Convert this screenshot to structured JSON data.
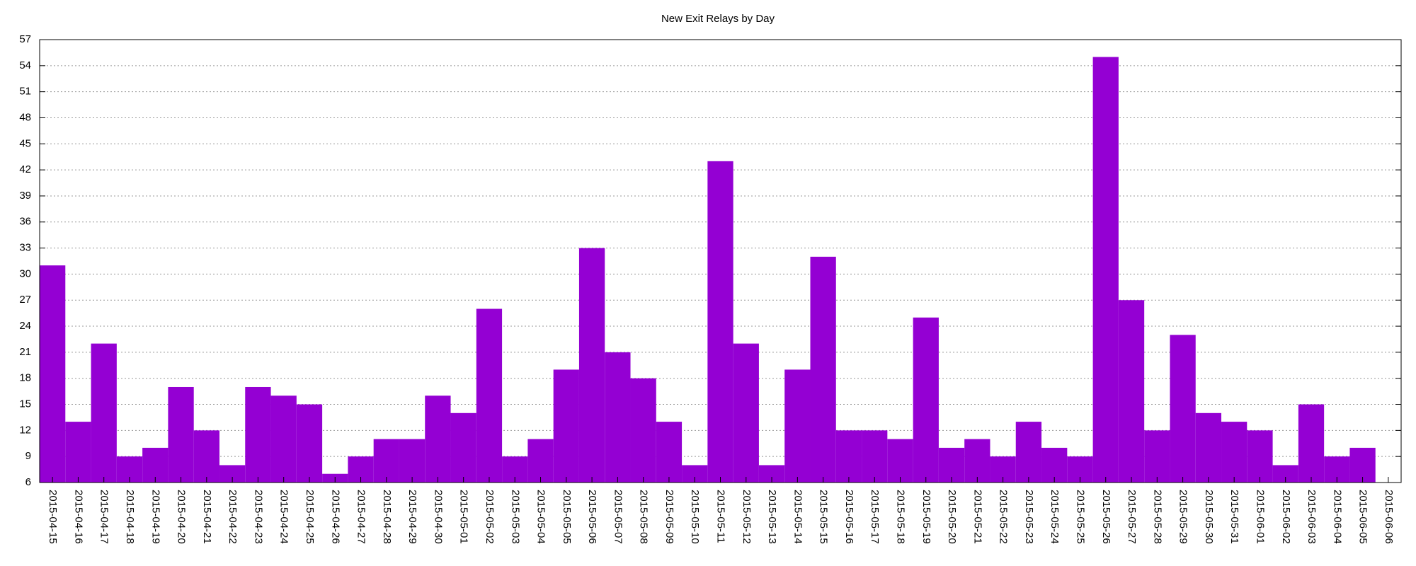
{
  "chart_data": {
    "type": "bar",
    "title": "New Exit Relays by Day",
    "categories": [
      "2015-04-15",
      "2015-04-16",
      "2015-04-17",
      "2015-04-18",
      "2015-04-19",
      "2015-04-20",
      "2015-04-21",
      "2015-04-22",
      "2015-04-23",
      "2015-04-24",
      "2015-04-25",
      "2015-04-26",
      "2015-04-27",
      "2015-04-28",
      "2015-04-29",
      "2015-04-30",
      "2015-05-01",
      "2015-05-02",
      "2015-05-03",
      "2015-05-04",
      "2015-05-05",
      "2015-05-06",
      "2015-05-07",
      "2015-05-08",
      "2015-05-09",
      "2015-05-10",
      "2015-05-11",
      "2015-05-12",
      "2015-05-13",
      "2015-05-14",
      "2015-05-15",
      "2015-05-16",
      "2015-05-17",
      "2015-05-18",
      "2015-05-19",
      "2015-05-20",
      "2015-05-21",
      "2015-05-22",
      "2015-05-23",
      "2015-05-24",
      "2015-05-25",
      "2015-05-26",
      "2015-05-27",
      "2015-05-28",
      "2015-05-29",
      "2015-05-30",
      "2015-05-31",
      "2015-06-01",
      "2015-06-02",
      "2015-06-03",
      "2015-06-04",
      "2015-06-05",
      "2015-06-06"
    ],
    "values": [
      31,
      13,
      22,
      9,
      10,
      17,
      12,
      8,
      17,
      16,
      15,
      7,
      9,
      11,
      11,
      16,
      14,
      26,
      9,
      11,
      19,
      33,
      21,
      18,
      13,
      8,
      43,
      22,
      8,
      19,
      32,
      12,
      12,
      11,
      25,
      10,
      11,
      9,
      13,
      10,
      9,
      55,
      27,
      12,
      23,
      14,
      13,
      12,
      8,
      15,
      9,
      10,
      null
    ],
    "color": "#9400d3",
    "ylim": [
      6,
      57
    ],
    "yticks": [
      6,
      9,
      12,
      15,
      18,
      21,
      24,
      27,
      30,
      33,
      36,
      39,
      42,
      45,
      48,
      51,
      54,
      57
    ],
    "grid": true
  }
}
